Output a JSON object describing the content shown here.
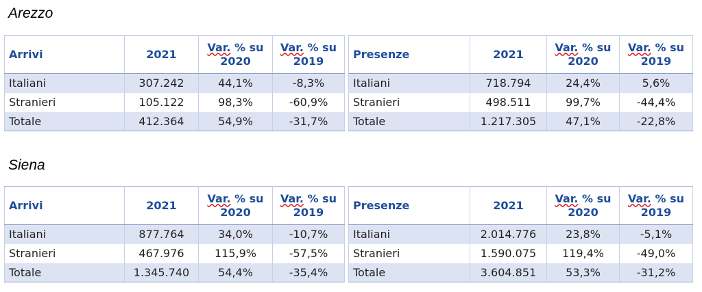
{
  "sections": [
    {
      "title": "Arezzo",
      "arrivi": {
        "headers": [
          "Arrivi",
          "2021",
          "Var. % su 2020",
          "Var. % su 2019"
        ],
        "rows": [
          [
            "Italiani",
            "307.242",
            "44,1%",
            "-8,3%"
          ],
          [
            "Stranieri",
            "105.122",
            "98,3%",
            "-60,9%"
          ],
          [
            "Totale",
            "412.364",
            "54,9%",
            "-31,7%"
          ]
        ]
      },
      "presenze": {
        "headers": [
          "Presenze",
          "2021",
          "Var. % su 2020",
          "Var. % su 2019"
        ],
        "rows": [
          [
            "Italiani",
            "718.794",
            "24,4%",
            "5,6%"
          ],
          [
            "Stranieri",
            "498.511",
            "99,7%",
            "-44,4%"
          ],
          [
            "Totale",
            "1.217.305",
            "47,1%",
            "-22,8%"
          ]
        ]
      }
    },
    {
      "title": "Siena",
      "arrivi": {
        "headers": [
          "Arrivi",
          "2021",
          "Var. % su 2020",
          "Var. % su 2019"
        ],
        "rows": [
          [
            "Italiani",
            "877.764",
            "34,0%",
            "-10,7%"
          ],
          [
            "Stranieri",
            "467.976",
            "115,9%",
            "-57,5%"
          ],
          [
            "Totale",
            "1.345.740",
            "54,4%",
            "-35,4%"
          ]
        ]
      },
      "presenze": {
        "headers": [
          "Presenze",
          "2021",
          "Var. % su 2020",
          "Var. % su 2019"
        ],
        "rows": [
          [
            "Italiani",
            "2.014.776",
            "23,8%",
            "-5,1%"
          ],
          [
            "Stranieri",
            "1.590.075",
            "119,4%",
            "-49,0%"
          ],
          [
            "Totale",
            "3.604.851",
            "53,3%",
            "-31,2%"
          ]
        ]
      }
    }
  ]
}
